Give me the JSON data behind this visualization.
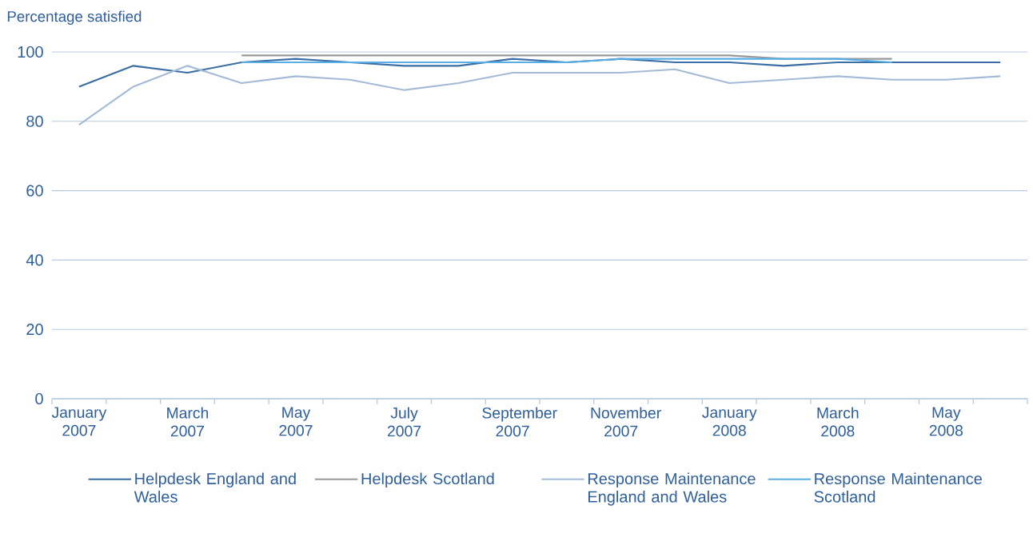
{
  "chart_data": {
    "type": "line",
    "ylabel": "Percentage satisfied",
    "categories": [
      "January 2007",
      null,
      "March 2007",
      null,
      "May 2007",
      null,
      "July 2007",
      null,
      "September 2007",
      null,
      "November 2007",
      null,
      "January 2008",
      null,
      "March 2008",
      null,
      "May 2008",
      null
    ],
    "series": [
      {
        "name": "Helpdesk England and Wales",
        "color": "#3a6ea5",
        "values": [
          90,
          96,
          94,
          97,
          98,
          97,
          96,
          96,
          98,
          97,
          98,
          97,
          97,
          96,
          97,
          97,
          97,
          97
        ]
      },
      {
        "name": "Helpdesk Scotland",
        "color": "#999999",
        "values": [
          null,
          null,
          null,
          99,
          99,
          99,
          99,
          99,
          99,
          99,
          99,
          99,
          99,
          98,
          98,
          98,
          null,
          null
        ]
      },
      {
        "name": "Response Maintenance England and Wales",
        "color": "#a3bbd6",
        "values": [
          79,
          90,
          96,
          91,
          93,
          92,
          89,
          91,
          94,
          94,
          94,
          95,
          91,
          92,
          93,
          92,
          92,
          93
        ]
      },
      {
        "name": "Response Maintenance Scotland",
        "color": "#5aaee6",
        "values": [
          null,
          null,
          null,
          97,
          97,
          97,
          97,
          97,
          97,
          97,
          98,
          98,
          98,
          98,
          98,
          97,
          null,
          null
        ]
      }
    ],
    "ylim": [
      0,
      100
    ],
    "yticks": [
      0,
      20,
      40,
      60,
      80,
      100
    ],
    "grid": "y",
    "legend": "bottom",
    "marker": "none",
    "line_style": "solid"
  }
}
